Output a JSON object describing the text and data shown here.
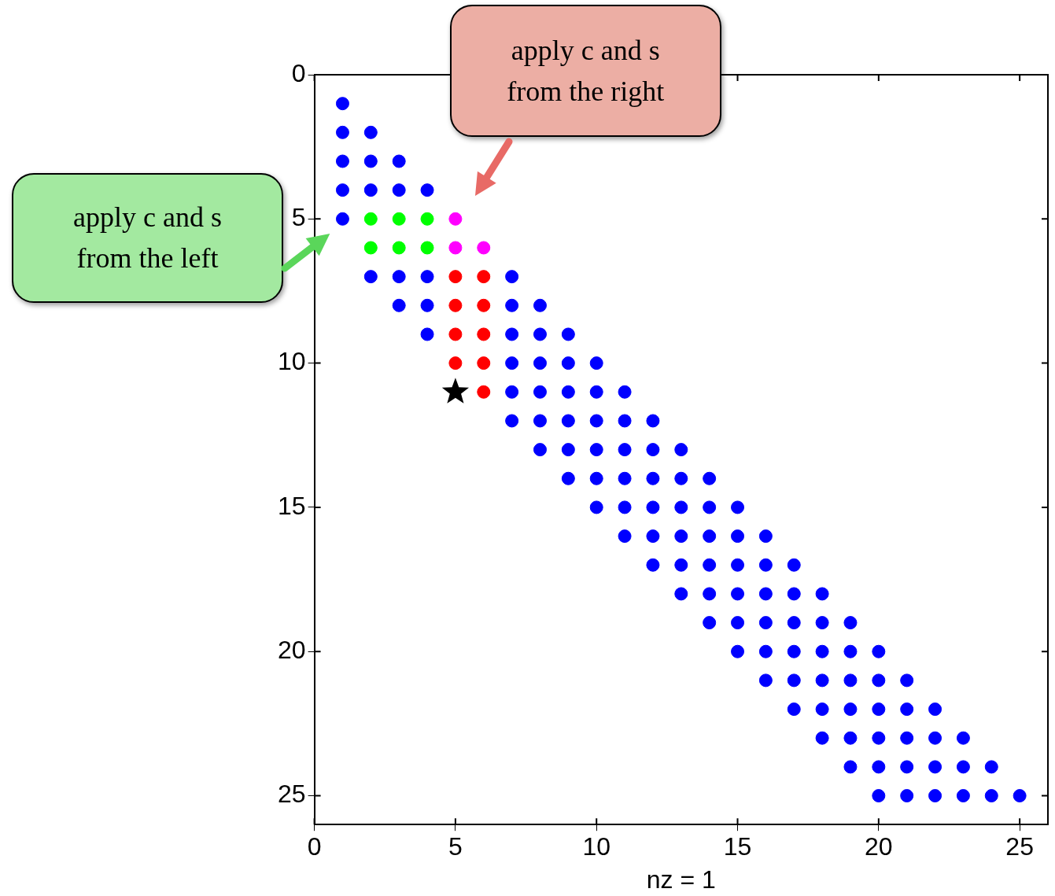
{
  "chart_data": {
    "type": "scatter",
    "xlabel": "nz = 1",
    "xlim": [
      0,
      26
    ],
    "ylim": [
      26,
      0
    ],
    "xticks": [
      0,
      5,
      10,
      15,
      20,
      25
    ],
    "yticks": [
      0,
      5,
      10,
      15,
      20,
      25
    ],
    "grid": false,
    "legend": false,
    "marker": "circle",
    "series": [
      {
        "color": "#0000ff",
        "x": [
          1,
          1,
          2,
          1,
          2,
          3,
          1,
          2,
          3,
          4,
          1,
          2,
          3,
          4,
          7,
          3,
          4,
          7,
          8,
          4,
          7,
          8,
          9,
          7,
          8,
          9,
          10,
          7,
          8,
          9,
          10,
          11,
          7,
          8,
          9,
          10,
          11,
          12,
          8,
          9,
          10,
          11,
          12,
          13,
          9,
          10,
          11,
          12,
          13,
          14,
          10,
          11,
          12,
          13,
          14,
          15,
          11,
          12,
          13,
          14,
          15,
          16,
          12,
          13,
          14,
          15,
          16,
          17,
          13,
          14,
          15,
          16,
          17,
          18,
          14,
          15,
          16,
          17,
          18,
          19,
          15,
          16,
          17,
          18,
          19,
          20,
          16,
          17,
          18,
          19,
          20,
          21,
          17,
          18,
          19,
          20,
          21,
          22,
          18,
          19,
          20,
          21,
          22,
          23,
          19,
          20,
          21,
          22,
          23,
          24,
          20,
          21,
          22,
          23,
          24,
          25
        ],
        "values": [
          1,
          2,
          2,
          3,
          3,
          3,
          4,
          4,
          4,
          4,
          5,
          7,
          7,
          7,
          7,
          8,
          8,
          8,
          8,
          9,
          9,
          9,
          9,
          10,
          10,
          10,
          10,
          11,
          11,
          11,
          11,
          11,
          12,
          12,
          12,
          12,
          12,
          12,
          13,
          13,
          13,
          13,
          13,
          13,
          14,
          14,
          14,
          14,
          14,
          14,
          15,
          15,
          15,
          15,
          15,
          15,
          16,
          16,
          16,
          16,
          16,
          16,
          17,
          17,
          17,
          17,
          17,
          17,
          18,
          18,
          18,
          18,
          18,
          18,
          19,
          19,
          19,
          19,
          19,
          19,
          20,
          20,
          20,
          20,
          20,
          20,
          21,
          21,
          21,
          21,
          21,
          21,
          22,
          22,
          22,
          22,
          22,
          22,
          23,
          23,
          23,
          23,
          23,
          23,
          24,
          24,
          24,
          24,
          24,
          24,
          25,
          25,
          25,
          25,
          25,
          25
        ]
      },
      {
        "color": "#00ff00",
        "x": [
          2,
          3,
          4,
          2,
          3,
          4
        ],
        "values": [
          5,
          5,
          5,
          6,
          6,
          6
        ]
      },
      {
        "color": "#ff0000",
        "x": [
          5,
          6,
          5,
          6,
          5,
          6,
          5,
          6,
          6
        ],
        "values": [
          7,
          7,
          8,
          8,
          9,
          9,
          10,
          10,
          11
        ]
      },
      {
        "color": "#ff00ff",
        "x": [
          5,
          5,
          6
        ],
        "values": [
          5,
          6,
          6
        ]
      },
      {
        "color": "#000000",
        "marker": "star",
        "x": [
          5
        ],
        "values": [
          11
        ]
      }
    ],
    "annotations": [
      "apply c and s from the left",
      "apply c and s from the right"
    ]
  }
}
